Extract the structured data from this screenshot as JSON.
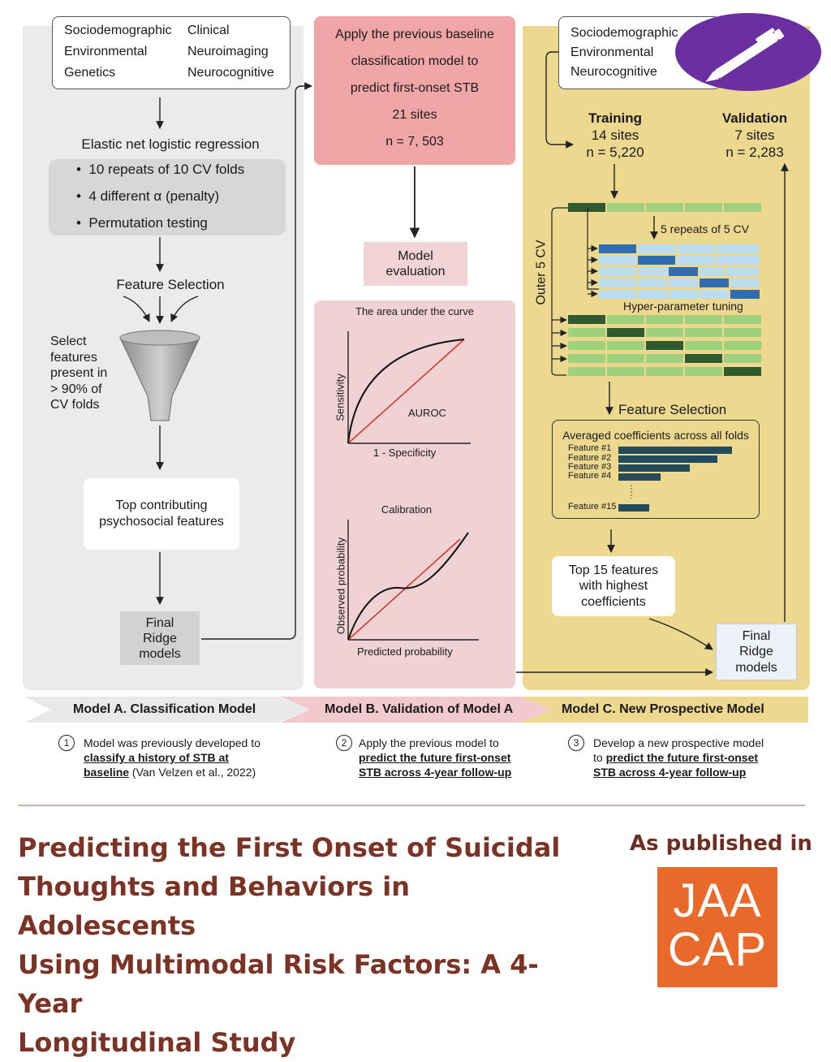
{
  "panel_a": {
    "data_types": [
      "Sociodemographic",
      "Clinical",
      "Environmental",
      "Neuroimaging",
      "Genetics",
      "Neurocognitive"
    ],
    "method_title": "Elastic net logistic regression",
    "bullets": [
      "10 repeats of 10 CV folds",
      "4 different α (penalty)",
      "Permutation testing"
    ],
    "feature_selection": "Feature Selection",
    "select_note": [
      "Select",
      "features",
      "present in",
      "> 90% of",
      "CV folds"
    ],
    "top_features": [
      "Top contributing",
      "psychosocial features"
    ],
    "final_models": [
      "Final",
      "Ridge",
      "models"
    ]
  },
  "panel_b": {
    "apply_box": [
      "Apply the previous baseline",
      "classification model to",
      "predict first-onset STB",
      "21 sites",
      "n = 7, 503"
    ],
    "evaluation": [
      "Model",
      "evaluation"
    ],
    "auc_title": "The area under the curve",
    "auc_ylabel": "Sensitivity",
    "auc_xlabel": "1 - Specificity",
    "auc_label": "AUROC",
    "cal_title": "Calibration",
    "cal_ylabel": "Observed probability",
    "cal_xlabel": "Predicted probability"
  },
  "panel_c": {
    "data_types": [
      "Sociodemographic",
      "Environmental",
      "Neurocognitive"
    ],
    "training": {
      "label": "Training",
      "sites": "14 sites",
      "n": "n = 5,220"
    },
    "validation": {
      "label": "Validation",
      "sites": "7 sites",
      "n": "n = 2,283"
    },
    "inner_cv": "5 repeats of 5 CV",
    "outer_cv": "Outer 5 CV",
    "tuning": "Hyper-parameter tuning",
    "feature_selection": "Feature Selection",
    "coef_title": "Averaged coefficients across all folds",
    "features": [
      "Feature #1",
      "Feature #2",
      "Feature #3",
      "Feature #4",
      "Feature #15"
    ],
    "top15": [
      "Top 15 features",
      "with highest",
      "coefficients"
    ],
    "final_models": [
      "Final",
      "Ridge",
      "models"
    ]
  },
  "banner": {
    "a": "Model A. Classification Model",
    "b": "Model B. Validation of Model A",
    "c": "Model C. New Prospective Model"
  },
  "notes": {
    "n1": "1",
    "a1": "Model was previously developed to",
    "a2": "classify a history of STB at",
    "a3": "baseline",
    "a3b": " (Van Velzen et al., 2022)",
    "n2": "2",
    "b1": "Apply the previous model to",
    "b2": "predict the future first-onset",
    "b3": "STB across 4-year follow-up",
    "n3": "3",
    "c1": "Develop a new prospective model",
    "c2a": "to ",
    "c2": "predict the future first-onset",
    "c3": "STB across 4-year follow-up"
  },
  "footer": {
    "title_lines": [
      "Predicting the First Onset of Suicidal",
      "Thoughts and Behaviors in Adolescents",
      "Using Multimodal Risk Factors: A 4-Year",
      "Longitudinal Study"
    ],
    "published": "As published in",
    "logo_lines": [
      "JAA",
      "CAP"
    ]
  },
  "colors": {
    "panel_a": "#ebebeb",
    "panel_b_pink": "#f0a6a6",
    "panel_c": "#ecd88f",
    "title": "#7a3324",
    "logo": "#e8692a",
    "badge": "#6a2fa0"
  },
  "icons": [
    "pen-icon",
    "funnel-icon"
  ]
}
